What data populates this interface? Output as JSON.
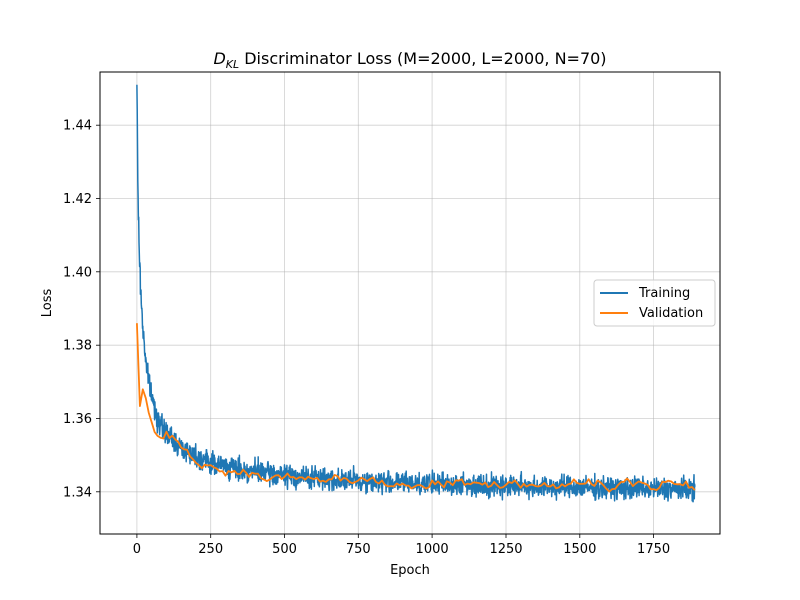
{
  "chart_data": {
    "type": "line",
    "title_symbol": "D",
    "title_subscript": "KL",
    "title_rest": " Discriminator Loss (M=2000, L=2000, N=70)",
    "xlabel": "Epoch",
    "ylabel": "Loss",
    "xlim": [
      -125,
      1975
    ],
    "ylim": [
      1.3285,
      1.4545
    ],
    "xticks": [
      0,
      250,
      500,
      750,
      1000,
      1250,
      1500,
      1750
    ],
    "yticks": [
      1.34,
      1.36,
      1.38,
      1.4,
      1.42,
      1.44
    ],
    "yticklabels": [
      "1.34",
      "1.36",
      "1.38",
      "1.40",
      "1.42",
      "1.44"
    ],
    "grid": true,
    "legend_position": "center-right",
    "series": [
      {
        "name": "Training",
        "color": "#1f77b4",
        "x": [
          0,
          3,
          6,
          10,
          15,
          20,
          25,
          30,
          40,
          50,
          60,
          70,
          80,
          90,
          100,
          125,
          150,
          175,
          200,
          250,
          300,
          350,
          400,
          450,
          500,
          600,
          700,
          800,
          900,
          1000,
          1100,
          1200,
          1300,
          1400,
          1500,
          1600,
          1700,
          1800,
          1890
        ],
        "y": [
          1.451,
          1.425,
          1.412,
          1.4,
          1.392,
          1.385,
          1.38,
          1.376,
          1.37,
          1.366,
          1.363,
          1.36,
          1.358,
          1.357,
          1.356,
          1.354,
          1.352,
          1.351,
          1.35,
          1.348,
          1.347,
          1.346,
          1.3455,
          1.345,
          1.3445,
          1.3438,
          1.3432,
          1.3428,
          1.3425,
          1.3422,
          1.342,
          1.3418,
          1.3416,
          1.3414,
          1.3412,
          1.341,
          1.3409,
          1.3408,
          1.3407
        ],
        "noise_amplitude": 0.0045,
        "sample_step": 1
      },
      {
        "name": "Validation",
        "color": "#ff7f0e",
        "x": [
          0,
          2,
          5,
          10,
          15,
          20,
          25,
          30,
          40,
          50,
          60,
          70,
          80,
          100,
          125,
          150,
          175,
          200,
          250,
          300,
          350,
          400,
          500,
          600,
          700,
          800,
          900,
          1000,
          1100,
          1200,
          1300,
          1400,
          1500,
          1600,
          1700,
          1800,
          1890
        ],
        "y": [
          1.386,
          1.386,
          1.378,
          1.363,
          1.368,
          1.369,
          1.37,
          1.367,
          1.362,
          1.359,
          1.357,
          1.356,
          1.355,
          1.356,
          1.354,
          1.352,
          1.35,
          1.348,
          1.347,
          1.346,
          1.345,
          1.3445,
          1.344,
          1.3435,
          1.3432,
          1.343,
          1.3428,
          1.3426,
          1.3425,
          1.3424,
          1.3423,
          1.3422,
          1.3422,
          1.3421,
          1.342,
          1.342,
          1.342
        ],
        "noise_amplitude": 0.0022,
        "sample_step": 10
      }
    ]
  }
}
